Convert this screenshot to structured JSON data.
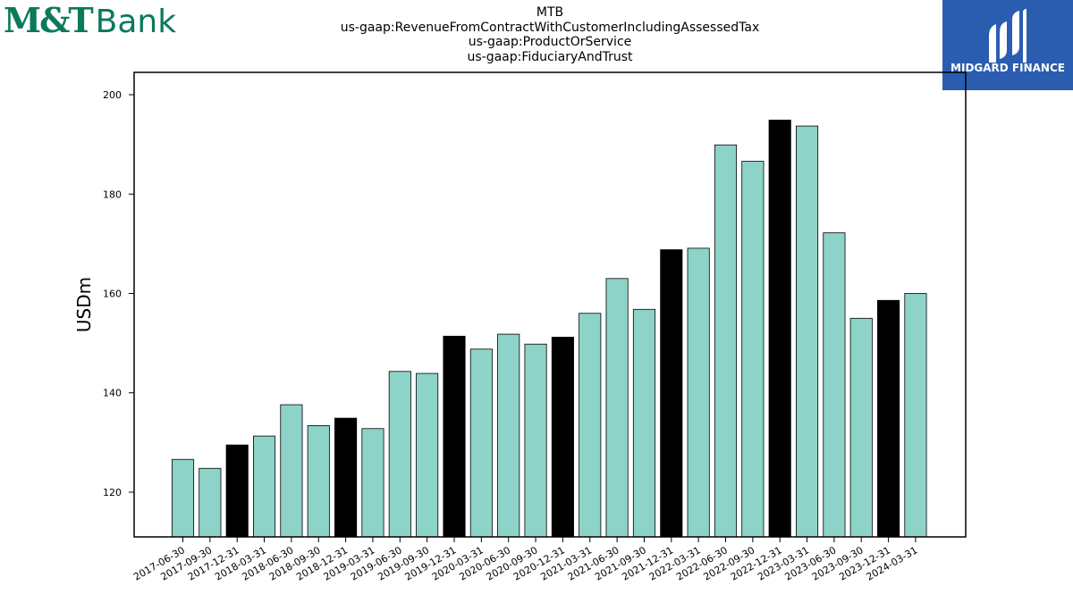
{
  "brand": {
    "bank_mark": "M&T",
    "bank_word": "Bank",
    "partner_name": "MIDGARD FINANCE"
  },
  "colors": {
    "bar_quarter": "#8dd3c7",
    "bar_year_end": "#000000",
    "bank_green": "#0a7a5a",
    "partner_blue": "#2a5db0"
  },
  "chart_data": {
    "type": "bar",
    "title_lines": [
      "MTB",
      "us-gaap:RevenueFromContractWithCustomerIncludingAssessedTax",
      "us-gaap:ProductOrService",
      "us-gaap:FiduciaryAndTrust"
    ],
    "ylabel": "USDm",
    "xlabel": "",
    "ylim": [
      111,
      204.5
    ],
    "yticks": [
      120,
      140,
      160,
      180,
      200
    ],
    "grid": false,
    "categories": [
      "2017-06-30",
      "2017-09-30",
      "2017-12-31",
      "2018-03-31",
      "2018-06-30",
      "2018-09-30",
      "2018-12-31",
      "2019-03-31",
      "2019-06-30",
      "2019-09-30",
      "2019-12-31",
      "2020-03-31",
      "2020-06-30",
      "2020-09-30",
      "2020-12-31",
      "2021-03-31",
      "2021-06-30",
      "2021-09-30",
      "2021-12-31",
      "2022-03-31",
      "2022-06-30",
      "2022-09-30",
      "2022-12-31",
      "2023-03-31",
      "2023-06-30",
      "2023-09-30",
      "2023-12-31",
      "2024-03-31"
    ],
    "values": [
      126.6,
      124.8,
      129.5,
      131.3,
      137.6,
      133.4,
      134.9,
      132.8,
      144.3,
      143.9,
      151.4,
      148.8,
      151.8,
      149.8,
      151.2,
      156.0,
      163.0,
      156.8,
      168.8,
      169.1,
      189.9,
      186.6,
      194.9,
      193.7,
      172.2,
      155.0,
      158.6,
      160.0
    ],
    "year_end": [
      false,
      false,
      true,
      false,
      false,
      false,
      true,
      false,
      false,
      false,
      true,
      false,
      false,
      false,
      true,
      false,
      false,
      false,
      true,
      false,
      false,
      false,
      true,
      false,
      false,
      false,
      true,
      false
    ]
  }
}
